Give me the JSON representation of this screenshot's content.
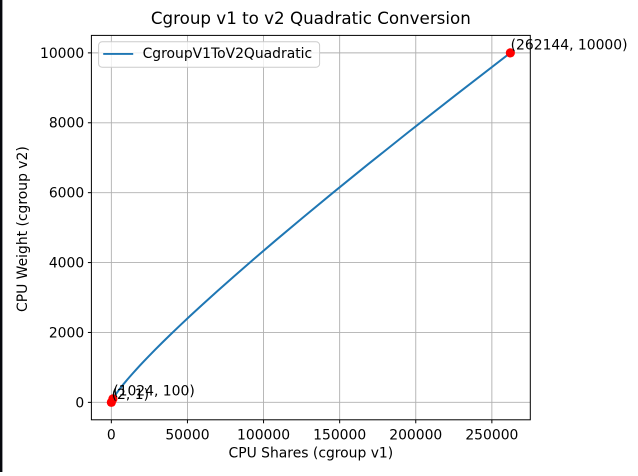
{
  "window": {
    "background": "#ffffff",
    "left_edge_color": "#06070d"
  },
  "chart_data": {
    "type": "line",
    "title": "Cgroup v1 to v2 Quadratic Conversion",
    "xlabel": "CPU Shares (cgroup v1)",
    "ylabel": "CPU Weight (cgroup v2)",
    "xlim": [
      -13105.1,
      275251.1
    ],
    "ylim": [
      -498.95,
      10499.95
    ],
    "x_ticks": [
      0,
      50000,
      100000,
      150000,
      200000,
      250000
    ],
    "y_ticks": [
      0,
      2000,
      4000,
      6000,
      8000,
      10000
    ],
    "grid": true,
    "grid_color": "#b0b0b0",
    "axis_color": "#000000",
    "legend": {
      "position": "upper left",
      "entries": [
        {
          "label": "CgroupV1ToV2Quadratic",
          "color": "#1f77b4"
        }
      ]
    },
    "series": [
      {
        "name": "CgroupV1ToV2Quadratic",
        "color": "#1f77b4",
        "x": [
          2,
          2.32,
          2.69,
          3.11,
          3.61,
          4.18,
          4.84,
          5.61,
          6.5,
          7.53,
          8.72,
          10.11,
          11.71,
          13.57,
          15.73,
          18.22,
          21.11,
          24.46,
          28.34,
          32.84,
          38.05,
          44.09,
          51.09,
          59.2,
          68.59,
          79.48,
          92.09,
          106.7,
          123.6,
          143.3,
          166.0,
          192.3,
          222.9,
          258.2,
          299.2,
          346.7,
          401.7,
          465.5,
          539.3,
          624.9,
          724.1,
          839.0,
          972.1,
          1126,
          1305,
          1512,
          1752,
          2030,
          2353,
          2726,
          3158,
          3660,
          4240,
          4913,
          5693,
          6597,
          7643,
          8856,
          10262,
          11890,
          13777,
          15964,
          18497,
          21432,
          24834,
          28774,
          33341,
          38632,
          44762,
          51866,
          60097,
          69634,
          80684,
          93488,
          108324,
          125515,
          145433,
          168513,
          195255,
          226241,
          262144
        ],
        "y": [
          1.0,
          1.11,
          1.23,
          1.36,
          1.51,
          1.67,
          1.85,
          2.05,
          2.28,
          2.53,
          2.81,
          3.12,
          3.47,
          3.85,
          4.28,
          4.76,
          5.3,
          5.9,
          6.57,
          7.32,
          8.16,
          9.09,
          10.14,
          11.3,
          12.61,
          14.08,
          15.72,
          17.56,
          19.61,
          21.92,
          24.51,
          27.41,
          30.67,
          34.32,
          38.42,
          43.03,
          48.21,
          54.03,
          60.57,
          67.92,
          76.2,
          85.51,
          95.99,
          107.8,
          121.1,
          136.1,
          153.0,
          172.0,
          193.5,
          217.7,
          245.1,
          276.0,
          310.9,
          350.3,
          394.8,
          445.2,
          502.1,
          566.6,
          639.5,
          722.1,
          815.6,
          921.5,
          1041.5,
          1177.5,
          1331.8,
          1506.8,
          1705.4,
          1930.8,
          2186.7,
          2477.4,
          2807.7,
          3183.1,
          3609.9,
          4095.4,
          4647.7,
          5276.3,
          5992.0,
          6807.0,
          7735.5,
          8793.7,
          10000.0
        ]
      }
    ],
    "annotated_points": [
      {
        "x": 2,
        "y": 1,
        "label": "(2, 1)"
      },
      {
        "x": 1024,
        "y": 100,
        "label": "(1024, 100)"
      },
      {
        "x": 262144,
        "y": 10000,
        "label": "(262144, 10000)"
      }
    ],
    "point_color": "#ff0000"
  }
}
